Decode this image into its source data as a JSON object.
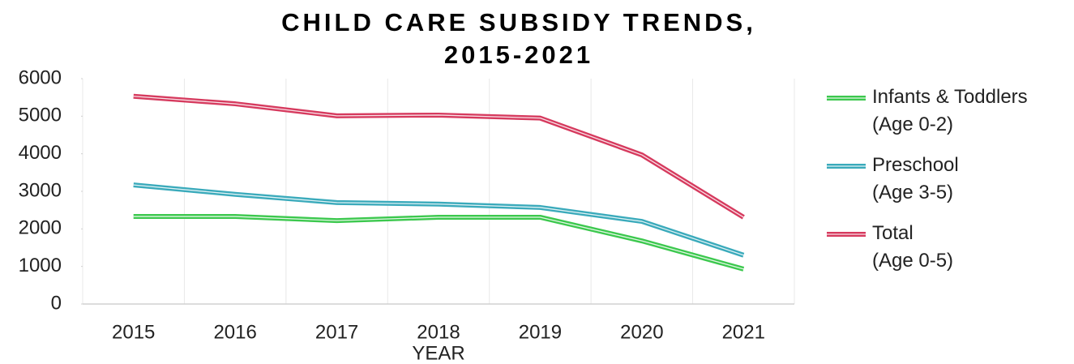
{
  "chart_data": {
    "type": "line",
    "title": [
      "CHILD CARE SUBSIDY TRENDS,",
      "2015-2021"
    ],
    "x_label": "YEAR",
    "categories": [
      "2015",
      "2016",
      "2017",
      "2018",
      "2019",
      "2020",
      "2021"
    ],
    "series": [
      {
        "name": "Infants & Toddlers\n(Age 0-2)",
        "color": "#3cc84e",
        "values": [
          2330,
          2330,
          2220,
          2310,
          2310,
          1680,
          930
        ]
      },
      {
        "name": "Preschool\n(Age 3-5)",
        "color": "#3aaabb",
        "values": [
          3170,
          2920,
          2700,
          2660,
          2570,
          2200,
          1300
        ]
      },
      {
        "name": "Total\n(Age 0-5)",
        "color": "#d63a5e",
        "values": [
          5530,
          5330,
          5010,
          5030,
          4950,
          3970,
          2310
        ]
      }
    ],
    "ylim": [
      0,
      6000
    ],
    "yticks": [
      0,
      1000,
      2000,
      3000,
      4000,
      5000,
      6000
    ],
    "grid": true,
    "legend": "right"
  }
}
